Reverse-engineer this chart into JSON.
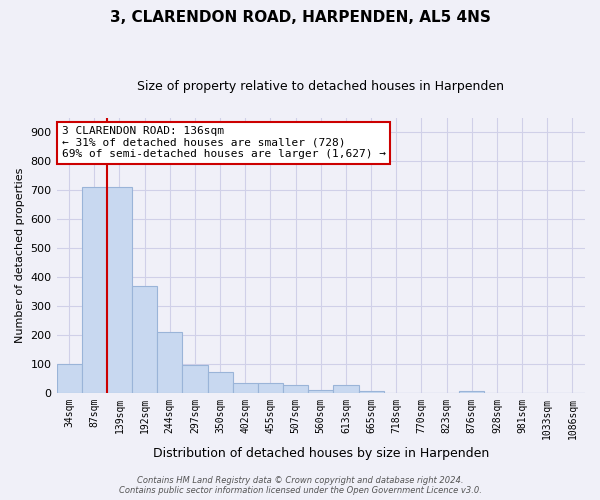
{
  "title": "3, CLARENDON ROAD, HARPENDEN, AL5 4NS",
  "subtitle": "Size of property relative to detached houses in Harpenden",
  "xlabel": "Distribution of detached houses by size in Harpenden",
  "ylabel": "Number of detached properties",
  "bar_labels": [
    "34sqm",
    "87sqm",
    "139sqm",
    "192sqm",
    "244sqm",
    "297sqm",
    "350sqm",
    "402sqm",
    "455sqm",
    "507sqm",
    "560sqm",
    "613sqm",
    "665sqm",
    "718sqm",
    "770sqm",
    "823sqm",
    "876sqm",
    "928sqm",
    "981sqm",
    "1033sqm",
    "1086sqm"
  ],
  "bar_values": [
    100,
    710,
    710,
    370,
    210,
    95,
    73,
    35,
    35,
    25,
    10,
    25,
    5,
    0,
    0,
    0,
    5,
    0,
    0,
    0,
    0
  ],
  "bar_color": "#c8d8f0",
  "bar_edge_color": "#9ab4d8",
  "highlight_index": 2,
  "highlight_line_color": "#cc0000",
  "ylim": [
    0,
    950
  ],
  "yticks": [
    0,
    100,
    200,
    300,
    400,
    500,
    600,
    700,
    800,
    900
  ],
  "annotation_line1": "3 CLARENDON ROAD: 136sqm",
  "annotation_line2": "← 31% of detached houses are smaller (728)",
  "annotation_line3": "69% of semi-detached houses are larger (1,627) →",
  "footer_line1": "Contains HM Land Registry data © Crown copyright and database right 2024.",
  "footer_line2": "Contains public sector information licensed under the Open Government Licence v3.0.",
  "background_color": "#f0f0f8",
  "grid_color": "#d0d0e8"
}
